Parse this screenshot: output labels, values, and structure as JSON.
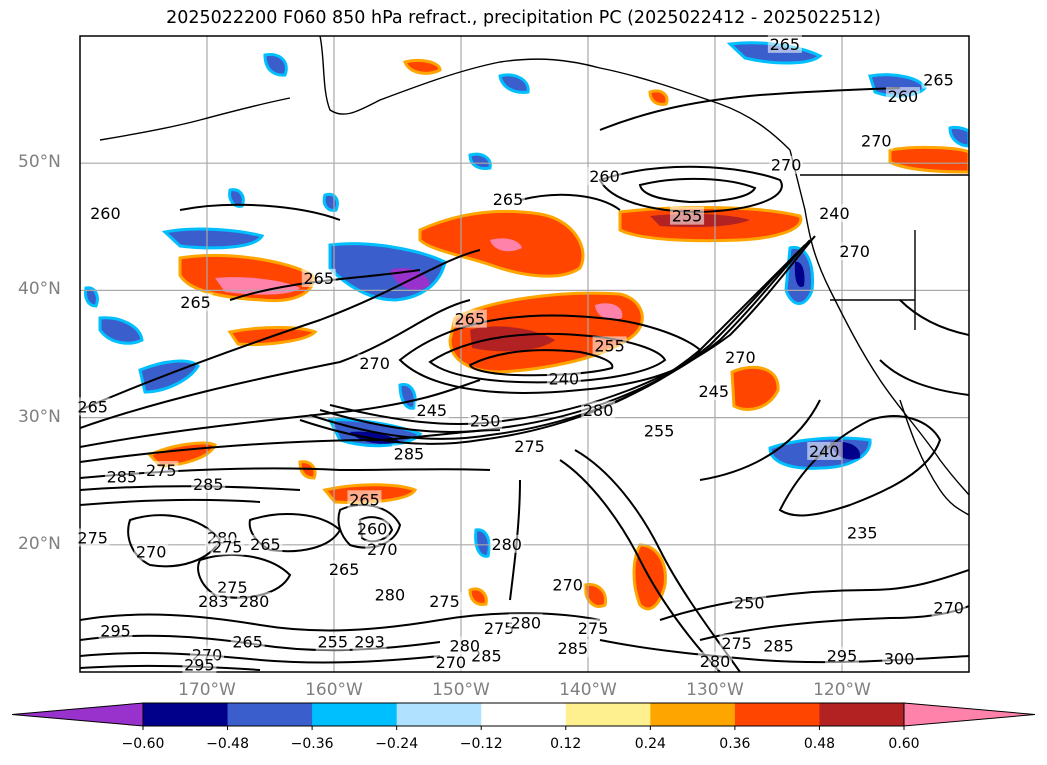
{
  "title": "2025022200 F060 850 hPa refract., precipitation PC (2025022412 - 2025022512)",
  "map": {
    "lon_range": [
      -180,
      -110
    ],
    "lat_range": [
      10,
      60
    ],
    "gridlines": true,
    "lat_ticks": [
      {
        "value": 50,
        "label": "50°N"
      },
      {
        "value": 40,
        "label": "40°N"
      },
      {
        "value": 30,
        "label": "30°N"
      },
      {
        "value": 20,
        "label": "20°N"
      }
    ],
    "lon_ticks": [
      {
        "value": -170,
        "label": "170°W"
      },
      {
        "value": -160,
        "label": "160°W"
      },
      {
        "value": -150,
        "label": "150°W"
      },
      {
        "value": -140,
        "label": "140°W"
      },
      {
        "value": -130,
        "label": "130°W"
      },
      {
        "value": -120,
        "label": "120°W"
      }
    ],
    "contour_labels": [
      {
        "text": "265",
        "lon": -170.9,
        "lat": 39.0
      },
      {
        "text": "260",
        "lon": -178.0,
        "lat": 46.0
      },
      {
        "text": "265",
        "lon": -161.2,
        "lat": 40.9
      },
      {
        "text": "265",
        "lon": -146.3,
        "lat": 47.1
      },
      {
        "text": "265",
        "lon": -149.3,
        "lat": 37.7
      },
      {
        "text": "270",
        "lon": -156.8,
        "lat": 34.2
      },
      {
        "text": "265",
        "lon": -179.0,
        "lat": 30.8
      },
      {
        "text": "245",
        "lon": -152.3,
        "lat": 30.5
      },
      {
        "text": "250",
        "lon": -148.1,
        "lat": 29.7
      },
      {
        "text": "240",
        "lon": -141.9,
        "lat": 33.0
      },
      {
        "text": "255",
        "lon": -138.3,
        "lat": 35.6
      },
      {
        "text": "280",
        "lon": -139.2,
        "lat": 30.5
      },
      {
        "text": "285",
        "lon": -154.1,
        "lat": 27.1
      },
      {
        "text": "285",
        "lon": -169.9,
        "lat": 24.7
      },
      {
        "text": "275",
        "lon": -173.6,
        "lat": 25.8
      },
      {
        "text": "285",
        "lon": -176.7,
        "lat": 25.3
      },
      {
        "text": "275",
        "lon": -144.6,
        "lat": 27.7
      },
      {
        "text": "260",
        "lon": -138.7,
        "lat": 48.9
      },
      {
        "text": "255",
        "lon": -132.2,
        "lat": 45.8
      },
      {
        "text": "270",
        "lon": -128.0,
        "lat": 34.7
      },
      {
        "text": "245",
        "lon": -130.1,
        "lat": 32.0
      },
      {
        "text": "255",
        "lon": -134.4,
        "lat": 28.9
      },
      {
        "text": "270",
        "lon": -124.4,
        "lat": 49.8
      },
      {
        "text": "240",
        "lon": -120.6,
        "lat": 46.0
      },
      {
        "text": "270",
        "lon": -119.0,
        "lat": 43.0
      },
      {
        "text": "265",
        "lon": -112.4,
        "lat": 56.5
      },
      {
        "text": "260",
        "lon": -115.2,
        "lat": 55.2
      },
      {
        "text": "270",
        "lon": -117.3,
        "lat": 51.7
      },
      {
        "text": "265",
        "lon": -124.5,
        "lat": 59.3
      },
      {
        "text": "240",
        "lon": -121.4,
        "lat": 27.3
      },
      {
        "text": "235",
        "lon": -118.4,
        "lat": 20.9
      },
      {
        "text": "250",
        "lon": -127.3,
        "lat": 15.4
      },
      {
        "text": "275",
        "lon": -128.3,
        "lat": 12.2
      },
      {
        "text": "285",
        "lon": -125.0,
        "lat": 12.0
      },
      {
        "text": "270",
        "lon": -111.6,
        "lat": 15.0
      },
      {
        "text": "300",
        "lon": -115.5,
        "lat": 11.0
      },
      {
        "text": "295",
        "lon": -120.0,
        "lat": 11.2
      },
      {
        "text": "280",
        "lon": -130.0,
        "lat": 10.8
      },
      {
        "text": "270",
        "lon": -141.6,
        "lat": 16.8
      },
      {
        "text": "275",
        "lon": -139.6,
        "lat": 13.4
      },
      {
        "text": "285",
        "lon": -141.2,
        "lat": 11.8
      },
      {
        "text": "285",
        "lon": -148.0,
        "lat": 11.2
      },
      {
        "text": "275",
        "lon": -147.0,
        "lat": 13.4
      },
      {
        "text": "280",
        "lon": -144.9,
        "lat": 13.8
      },
      {
        "text": "280",
        "lon": -146.4,
        "lat": 20.0
      },
      {
        "text": "280",
        "lon": -149.7,
        "lat": 12.0
      },
      {
        "text": "275",
        "lon": -151.3,
        "lat": 15.5
      },
      {
        "text": "280",
        "lon": -155.6,
        "lat": 16.0
      },
      {
        "text": "270",
        "lon": -150.8,
        "lat": 10.7
      },
      {
        "text": "265",
        "lon": -159.2,
        "lat": 18.0
      },
      {
        "text": "293",
        "lon": -157.2,
        "lat": 12.3
      },
      {
        "text": "255",
        "lon": -160.1,
        "lat": 12.3
      },
      {
        "text": "265",
        "lon": -166.8,
        "lat": 12.3
      },
      {
        "text": "280",
        "lon": -166.3,
        "lat": 15.5
      },
      {
        "text": "275",
        "lon": -168.0,
        "lat": 16.6
      },
      {
        "text": "283",
        "lon": -169.5,
        "lat": 15.5
      },
      {
        "text": "280",
        "lon": -168.8,
        "lat": 20.5
      },
      {
        "text": "275",
        "lon": -168.4,
        "lat": 19.8
      },
      {
        "text": "265",
        "lon": -165.4,
        "lat": 20.0
      },
      {
        "text": "270",
        "lon": -170.0,
        "lat": 11.3
      },
      {
        "text": "270",
        "lon": -174.4,
        "lat": 19.4
      },
      {
        "text": "275",
        "lon": -179.0,
        "lat": 20.5
      },
      {
        "text": "285",
        "lon": -179.3,
        "lat": 16.0
      },
      {
        "text": "295",
        "lon": -177.2,
        "lat": 13.2
      },
      {
        "text": "295",
        "lon": -170.6,
        "lat": 10.5
      },
      {
        "text": "265",
        "lon": -157.6,
        "lat": 23.5
      },
      {
        "text": "260",
        "lon": -157.0,
        "lat": 21.2
      },
      {
        "text": "270",
        "lon": -156.2,
        "lat": 19.6
      }
    ]
  },
  "colorbar": {
    "levels": [
      "-0.60",
      "-0.48",
      "-0.36",
      "-0.24",
      "-0.12",
      "0.12",
      "0.24",
      "0.36",
      "0.48",
      "0.60"
    ],
    "colors": [
      "#9932cc",
      "#00008b",
      "#3a5fcd",
      "#00bfff",
      "#b0e2ff",
      "#ffffff",
      "#fff08f",
      "#ffa500",
      "#ff4500",
      "#b22222",
      "#ff82ab"
    ]
  }
}
